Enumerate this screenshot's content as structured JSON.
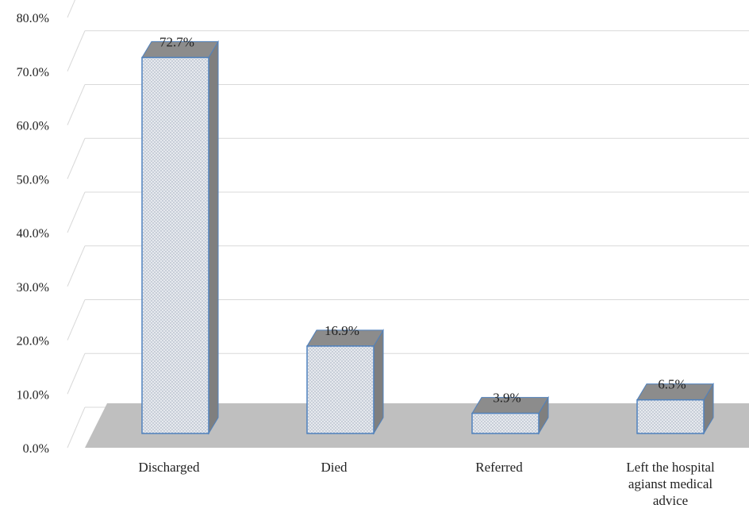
{
  "chart_data": {
    "type": "bar",
    "style": "3d-clustered-column",
    "categories": [
      [
        "Discharged"
      ],
      [
        "Died"
      ],
      [
        "Referred"
      ],
      [
        "Left the hospital",
        "agianst medical",
        "advice"
      ]
    ],
    "values": [
      72.7,
      16.9,
      3.9,
      6.5
    ],
    "data_labels": [
      "72.7%",
      "16.9%",
      "3.9%",
      "6.5%"
    ],
    "ylim": [
      0,
      80
    ],
    "y_ticks": [
      "0.0%",
      "10.0%",
      "20.0%",
      "30.0%",
      "40.0%",
      "50.0%",
      "60.0%",
      "70.0%",
      "80.0%"
    ],
    "grid": true,
    "legend": "none",
    "title": "",
    "xlabel": "",
    "ylabel": ""
  },
  "colors": {
    "bar_fill": "#e6e9ee",
    "bar_pattern_dot": "#9aa6b8",
    "bar_edge": "#4f81bd",
    "bar_side": "#7f7f7f",
    "bar_top": "#8c8c8c",
    "floor": "#bfbfbf",
    "grid": "#d9d9d9"
  }
}
